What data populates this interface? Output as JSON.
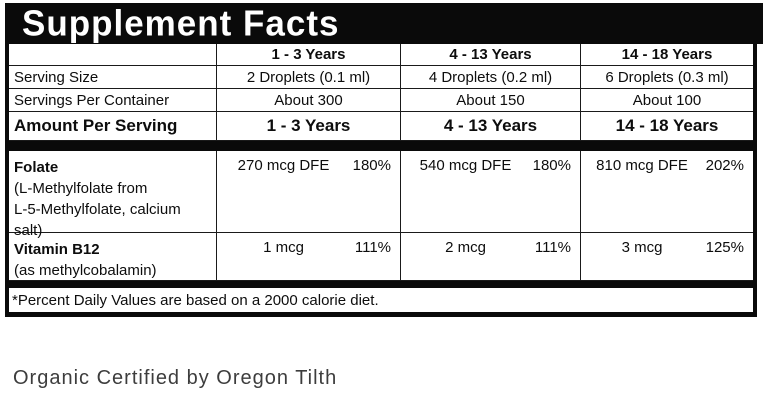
{
  "title": "Supplement Facts",
  "columns": [
    "1 - 3 Years",
    "4 - 13 Years",
    "14 - 18 Years"
  ],
  "serving_size": {
    "label": "Serving Size",
    "values": [
      "2 Droplets (0.1 ml)",
      "4 Droplets (0.2 ml)",
      "6 Droplets (0.3 ml)"
    ]
  },
  "servings_per_container": {
    "label": "Servings Per Container",
    "values": [
      "About 300",
      "About 150",
      "About 100"
    ]
  },
  "amount_per_serving": {
    "label": "Amount Per Serving",
    "values": [
      "1 - 3 Years",
      "4 - 13 Years",
      "14 - 18 Years"
    ]
  },
  "nutrients": [
    {
      "name": "Folate",
      "detail_lines": [
        "(L-Methylfolate from",
        "L-5-Methylfolate, calcium salt)"
      ],
      "values": [
        {
          "amount": "270 mcg DFE",
          "dv": "180%"
        },
        {
          "amount": "540 mcg DFE",
          "dv": "180%"
        },
        {
          "amount": "810 mcg DFE",
          "dv": "202%"
        }
      ]
    },
    {
      "name": "Vitamin B12",
      "detail_lines": [
        "(as methylcobalamin)"
      ],
      "values": [
        {
          "amount": "1 mcg",
          "dv": "111%"
        },
        {
          "amount": "2 mcg",
          "dv": "111%"
        },
        {
          "amount": "3 mcg",
          "dv": "125%"
        }
      ]
    }
  ],
  "footnote": "*Percent Daily Values are based on a 2000 calorie diet.",
  "certification": "Organic Certified by Oregon Tilth",
  "colors": {
    "border": "#0a0a0a",
    "title_bg": "#0a0a0a",
    "title_text": "#ffffff",
    "text": "#0d0d0d",
    "cert_text": "#3d3d3d",
    "background": "#ffffff"
  }
}
